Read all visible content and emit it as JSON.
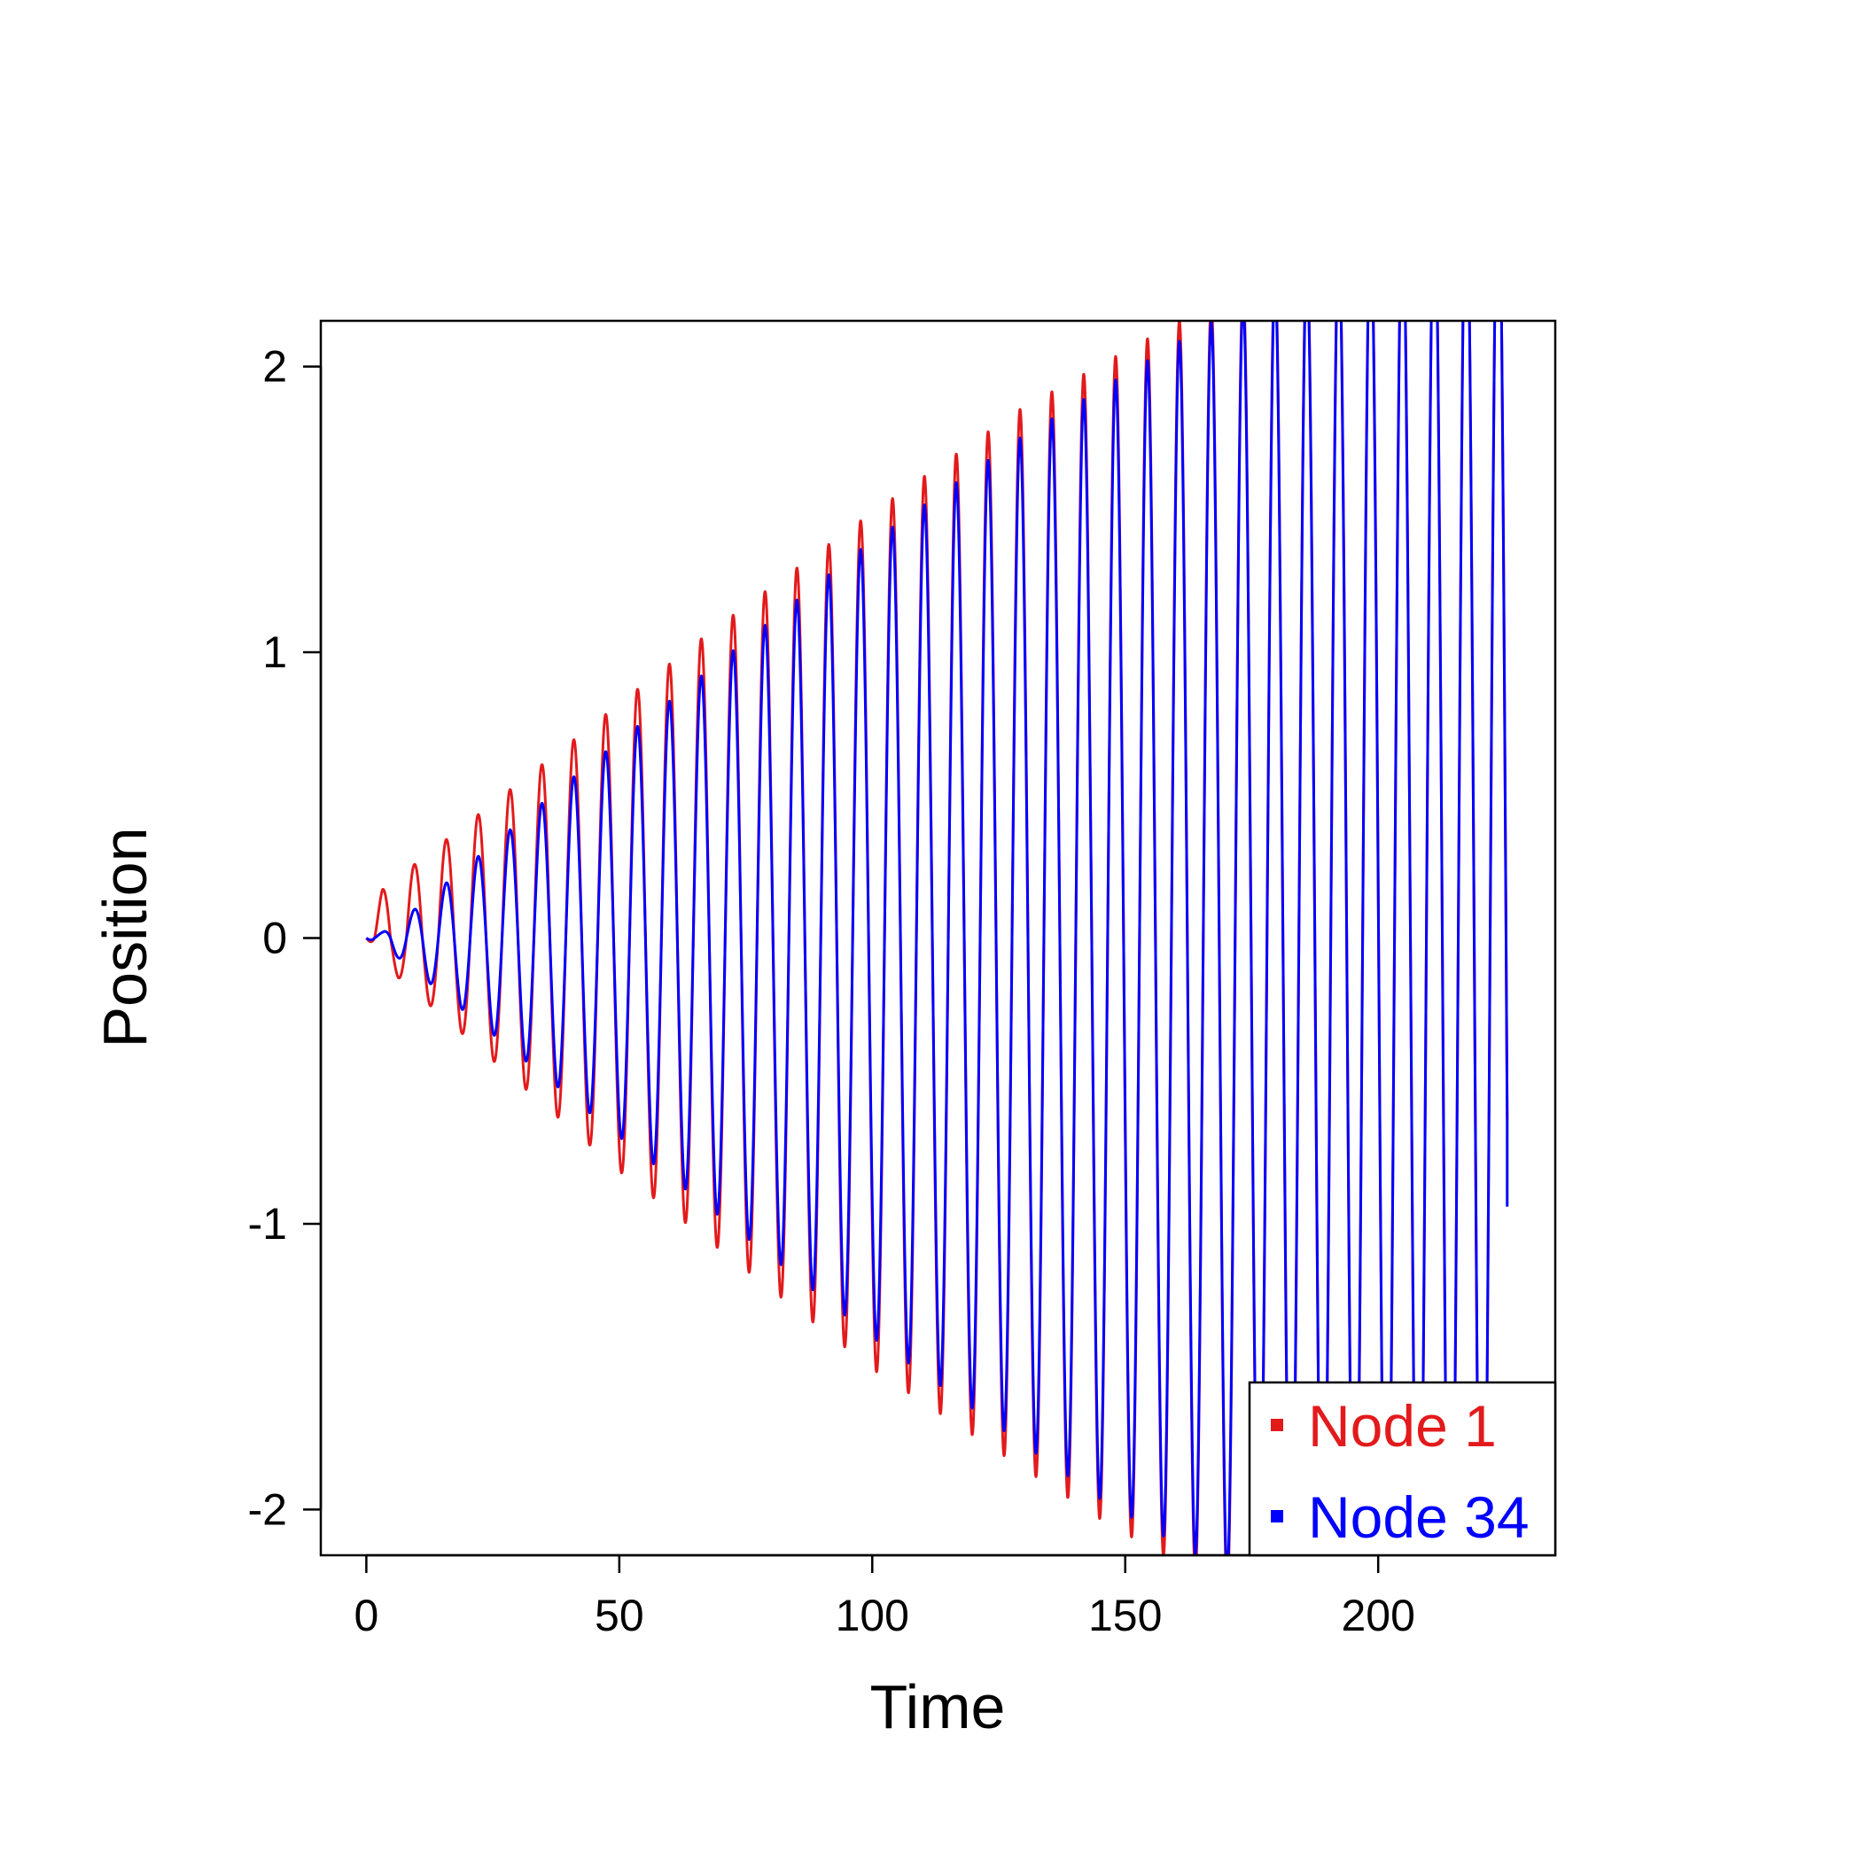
{
  "chart_data": {
    "type": "line",
    "title": "",
    "xlabel": "Time",
    "ylabel": "Position",
    "xlim": [
      -9,
      235
    ],
    "ylim": [
      -2.16,
      2.16
    ],
    "x_ticks": [
      0,
      50,
      100,
      150,
      200
    ],
    "y_ticks": [
      -2,
      -1,
      0,
      1,
      2
    ],
    "x_tick_labels": [
      "0",
      "50",
      "100",
      "150",
      "200"
    ],
    "y_tick_labels": [
      "-2",
      "-1",
      "0",
      "1",
      "2"
    ],
    "grid": false,
    "legend": {
      "position": "bottom-right",
      "boxed": true
    },
    "series": [
      {
        "name": "Node 1",
        "color": "#e31a1c",
        "x_end": 225.5,
        "period": 6.3,
        "peaks": [
          {
            "x": 3.2,
            "y": 0.17
          },
          {
            "x": 40.7,
            "y": 0.69
          },
          {
            "x": 66.4,
            "y": 1.05
          },
          {
            "x": 97.7,
            "y": 1.46
          },
          {
            "x": 129.2,
            "y": 1.85
          },
          {
            "x": 160.8,
            "y": 2.16
          }
        ],
        "troughs": [
          {
            "x": 6.4,
            "y": -0.14
          },
          {
            "x": 50.3,
            "y": -0.82
          },
          {
            "x": 101.0,
            "y": -1.52
          },
          {
            "x": 144.8,
            "y": -2.03
          },
          {
            "x": 157.5,
            "y": -2.16
          }
        ]
      },
      {
        "name": "Node 34",
        "color": "#0000ff",
        "x_end": 225.5,
        "period": 6.3,
        "peaks": [
          {
            "x": 3.2,
            "y": 0.02
          },
          {
            "x": 9.5,
            "y": 0.1
          },
          {
            "x": 40.7,
            "y": 0.56
          },
          {
            "x": 66.4,
            "y": 0.92
          },
          {
            "x": 97.7,
            "y": 1.36
          },
          {
            "x": 129.2,
            "y": 1.75
          },
          {
            "x": 160.8,
            "y": 2.09
          }
        ],
        "troughs": [
          {
            "x": 6.4,
            "y": -0.07
          },
          {
            "x": 50.3,
            "y": -0.7
          },
          {
            "x": 101.0,
            "y": -1.41
          },
          {
            "x": 144.8,
            "y": -1.96
          },
          {
            "x": 164.0,
            "y": -2.16
          }
        ],
        "end_value": -0.94
      }
    ]
  }
}
